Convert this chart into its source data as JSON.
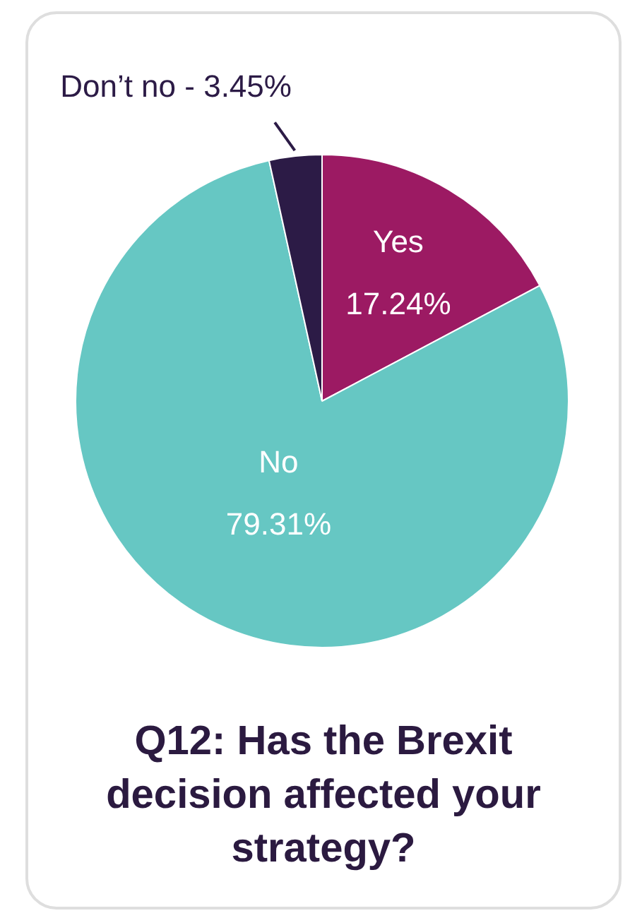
{
  "chart_data": {
    "type": "pie",
    "title": "Q12: Has the Brexit decision affected your strategy?",
    "categories": [
      "Yes",
      "No",
      "Don’t no"
    ],
    "values": [
      17.24,
      79.31,
      3.45
    ],
    "value_labels": [
      "17.24%",
      "79.31%",
      "3.45%"
    ],
    "colors": [
      "#9c1a63",
      "#66c7c3",
      "#2c1b46"
    ],
    "legend": false
  }
}
